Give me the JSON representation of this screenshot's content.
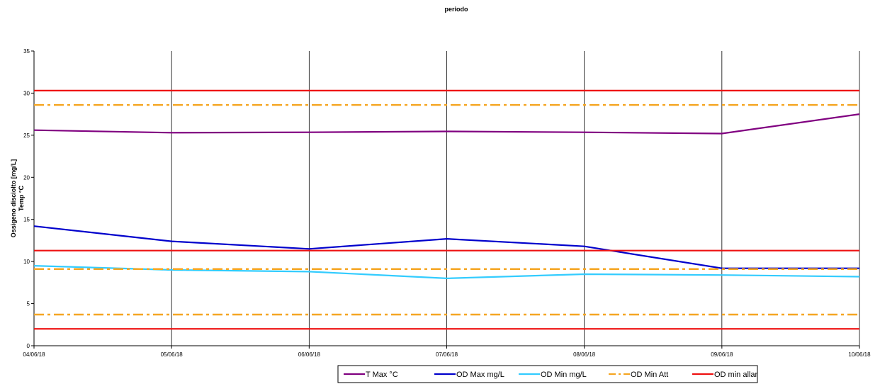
{
  "chart_data": {
    "type": "line",
    "title": "periodo",
    "ylabel_lines": [
      "Ossigeno disciolto [mg/L]",
      "Temp °C"
    ],
    "xlabel": "",
    "categories": [
      "04/06/18",
      "05/06/18",
      "06/06/18",
      "07/06/18",
      "08/06/18",
      "09/06/18",
      "10/06/18"
    ],
    "ylim": [
      0,
      35
    ],
    "yticks": [
      0,
      5,
      10,
      15,
      20,
      25,
      30,
      35
    ],
    "vertical_gridlines": true,
    "horizontal_gridlines": false,
    "legend_position": "bottom",
    "series": [
      {
        "name": "T Max °C",
        "color": "#800080",
        "style": "solid",
        "values": [
          25.6,
          25.3,
          25.35,
          25.45,
          25.35,
          25.2,
          27.5
        ]
      },
      {
        "name": "OD Max mg/L",
        "color": "#0000cc",
        "style": "solid",
        "values": [
          14.2,
          12.4,
          11.5,
          12.7,
          11.8,
          9.2,
          9.2
        ]
      },
      {
        "name": "OD  Min mg/L",
        "color": "#33ccff",
        "style": "solid",
        "values": [
          9.5,
          9.0,
          8.8,
          8.0,
          8.5,
          8.4,
          8.2
        ]
      },
      {
        "name": "OD Min Att",
        "color": "#f5a623",
        "style": "dashdot",
        "values": [
          28.6,
          28.6,
          28.6,
          28.6,
          28.6,
          28.6,
          28.6
        ]
      },
      {
        "name": "OD Min Att",
        "color": "#f5a623",
        "style": "dashdot",
        "hidden_in_legend": true,
        "values": [
          9.1,
          9.1,
          9.1,
          9.1,
          9.1,
          9.1,
          9.1
        ]
      },
      {
        "name": "OD Min Att",
        "color": "#f5a623",
        "style": "dashdot",
        "hidden_in_legend": true,
        "values": [
          3.7,
          3.7,
          3.7,
          3.7,
          3.7,
          3.7,
          3.7
        ]
      },
      {
        "name": "OD min allar",
        "color": "#ee1111",
        "style": "solid",
        "values": [
          30.3,
          30.3,
          30.3,
          30.3,
          30.3,
          30.3,
          30.3
        ]
      },
      {
        "name": "OD min allar",
        "color": "#ee1111",
        "style": "solid",
        "hidden_in_legend": true,
        "values": [
          11.3,
          11.3,
          11.3,
          11.3,
          11.3,
          11.3,
          11.3
        ]
      },
      {
        "name": "OD min allar",
        "color": "#ee1111",
        "style": "solid",
        "hidden_in_legend": true,
        "values": [
          2.0,
          2.0,
          2.0,
          2.0,
          2.0,
          2.0,
          2.0
        ]
      }
    ],
    "legend": [
      {
        "label": "T Max °C",
        "color": "#800080",
        "style": "solid"
      },
      {
        "label": "OD Max mg/L",
        "color": "#0000cc",
        "style": "solid"
      },
      {
        "label": "OD  Min mg/L",
        "color": "#33ccff",
        "style": "solid"
      },
      {
        "label": "OD Min Att",
        "color": "#f5a623",
        "style": "dashdot"
      },
      {
        "label": "OD min allar",
        "color": "#ee1111",
        "style": "solid"
      }
    ]
  }
}
